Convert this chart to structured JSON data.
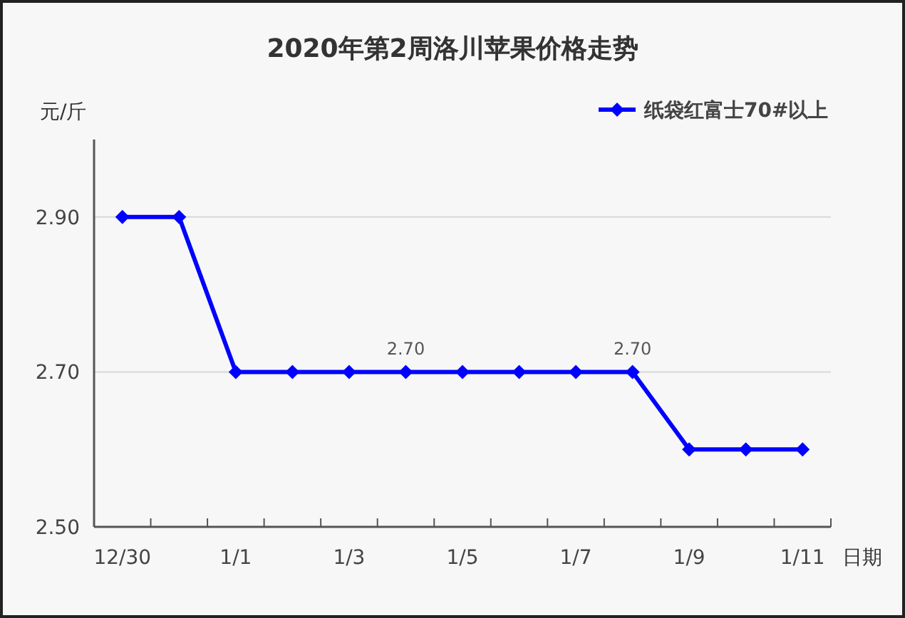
{
  "chart_data": {
    "type": "line",
    "title": "2020年第2周洛川苹果价格走势",
    "ylabel": "元/斤",
    "xlabel": "日期",
    "categories": [
      "12/30",
      null,
      "1/1",
      null,
      "1/3",
      null,
      "1/5",
      null,
      "1/7",
      null,
      "1/9",
      null,
      "1/11"
    ],
    "series": [
      {
        "name": "纸袋红富士70#以上",
        "color": "#0000ff",
        "values": [
          2.9,
          2.9,
          2.7,
          2.7,
          2.7,
          2.7,
          2.7,
          2.7,
          2.7,
          2.7,
          2.6,
          2.6,
          2.6
        ],
        "value_labels": [
          null,
          null,
          null,
          null,
          null,
          "2.70",
          null,
          null,
          null,
          "2.70",
          null,
          null,
          null
        ]
      }
    ],
    "ylim": [
      2.5,
      3.0
    ],
    "yticks": [
      {
        "value": 2.5,
        "label": "2.50"
      },
      {
        "value": 2.7,
        "label": "2.70"
      },
      {
        "value": 2.9,
        "label": "2.90"
      }
    ],
    "grid": "y",
    "legend": "top right",
    "marker": "diamond",
    "line_style": "solid"
  }
}
